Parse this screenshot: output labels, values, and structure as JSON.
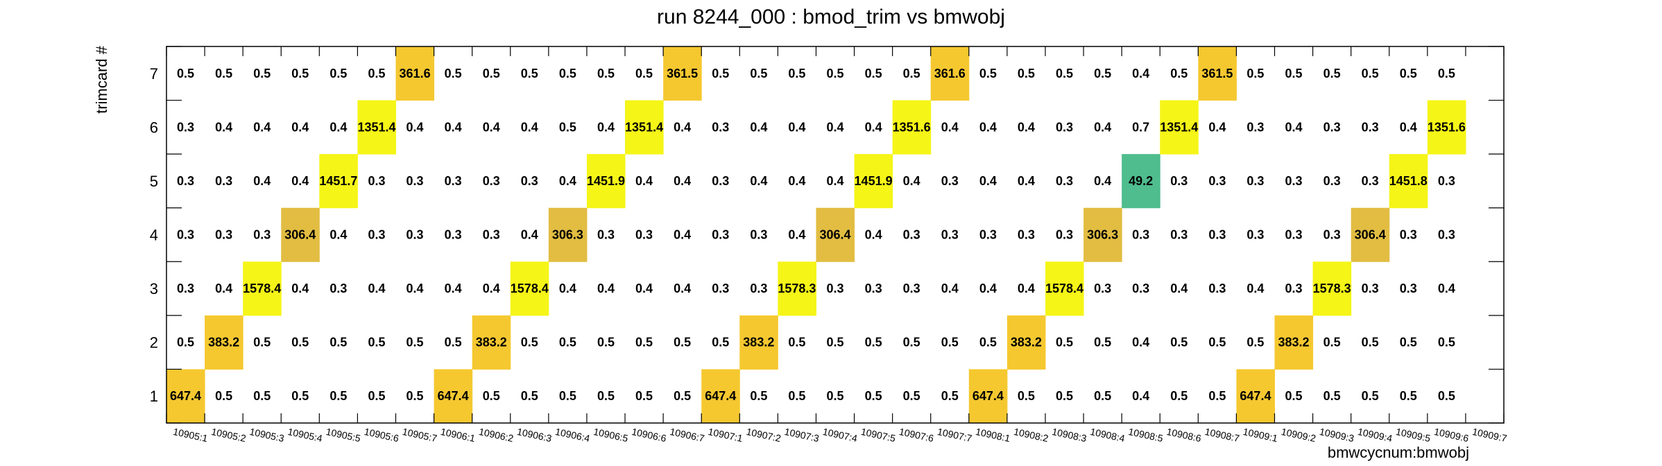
{
  "chart_data": {
    "type": "heatmap",
    "title": "run 8244_000 : bmod_trim vs bmwobj",
    "xlabel": "bmwcycnum:bmwobj",
    "ylabel": "trimcard #",
    "y_categories": [
      "1",
      "2",
      "3",
      "4",
      "5",
      "6",
      "7"
    ],
    "x_categories": [
      "10905:1",
      "10905:2",
      "10905:3",
      "10905:4",
      "10905:5",
      "10905:6",
      "10905:7",
      "10906:1",
      "10906:2",
      "10906:3",
      "10906:4",
      "10906:5",
      "10906:6",
      "10906:7",
      "10907:1",
      "10907:2",
      "10907:3",
      "10907:4",
      "10907:5",
      "10907:6",
      "10907:7",
      "10908:1",
      "10908:2",
      "10908:3",
      "10908:4",
      "10908:5",
      "10908:6",
      "10908:7",
      "10909:1",
      "10909:2",
      "10909:3",
      "10909:4",
      "10909:5",
      "10909:6",
      "10909:7"
    ],
    "values": [
      [
        "647.4",
        "0.5",
        "0.5",
        "0.5",
        "0.5",
        "0.5",
        "0.5",
        "647.4",
        "0.5",
        "0.5",
        "0.5",
        "0.5",
        "0.5",
        "0.5",
        "647.4",
        "0.5",
        "0.5",
        "0.5",
        "0.5",
        "0.5",
        "0.5",
        "647.4",
        "0.5",
        "0.5",
        "0.5",
        "0.4",
        "0.5",
        "0.5",
        "647.4",
        "0.5",
        "0.5",
        "0.5",
        "0.5",
        "0.5",
        ""
      ],
      [
        "0.5",
        "383.2",
        "0.5",
        "0.5",
        "0.5",
        "0.5",
        "0.5",
        "0.5",
        "383.2",
        "0.5",
        "0.5",
        "0.5",
        "0.5",
        "0.5",
        "0.5",
        "383.2",
        "0.5",
        "0.5",
        "0.5",
        "0.5",
        "0.5",
        "0.5",
        "383.2",
        "0.5",
        "0.5",
        "0.4",
        "0.5",
        "0.5",
        "0.5",
        "383.2",
        "0.5",
        "0.5",
        "0.5",
        "0.5",
        ""
      ],
      [
        "0.3",
        "0.4",
        "1578.4",
        "0.4",
        "0.3",
        "0.4",
        "0.4",
        "0.4",
        "0.4",
        "1578.4",
        "0.4",
        "0.4",
        "0.4",
        "0.4",
        "0.3",
        "0.3",
        "1578.3",
        "0.3",
        "0.3",
        "0.3",
        "0.4",
        "0.4",
        "0.4",
        "1578.4",
        "0.3",
        "0.3",
        "0.4",
        "0.3",
        "0.4",
        "0.3",
        "1578.3",
        "0.3",
        "0.3",
        "0.4",
        ""
      ],
      [
        "0.3",
        "0.3",
        "0.3",
        "306.4",
        "0.4",
        "0.3",
        "0.3",
        "0.3",
        "0.3",
        "0.4",
        "306.3",
        "0.3",
        "0.3",
        "0.4",
        "0.3",
        "0.3",
        "0.4",
        "306.4",
        "0.4",
        "0.3",
        "0.3",
        "0.3",
        "0.3",
        "0.3",
        "306.3",
        "0.3",
        "0.3",
        "0.3",
        "0.3",
        "0.3",
        "0.3",
        "306.4",
        "0.3",
        "0.3",
        ""
      ],
      [
        "0.3",
        "0.3",
        "0.4",
        "0.4",
        "1451.7",
        "0.3",
        "0.3",
        "0.3",
        "0.3",
        "0.3",
        "0.4",
        "1451.9",
        "0.4",
        "0.4",
        "0.3",
        "0.4",
        "0.4",
        "0.4",
        "1451.9",
        "0.4",
        "0.3",
        "0.4",
        "0.4",
        "0.3",
        "0.4",
        "49.2",
        "0.3",
        "0.3",
        "0.3",
        "0.3",
        "0.3",
        "0.3",
        "1451.8",
        "0.3",
        ""
      ],
      [
        "0.3",
        "0.4",
        "0.4",
        "0.4",
        "0.4",
        "1351.4",
        "0.4",
        "0.4",
        "0.4",
        "0.4",
        "0.5",
        "0.4",
        "1351.4",
        "0.4",
        "0.3",
        "0.4",
        "0.4",
        "0.4",
        "0.4",
        "1351.6",
        "0.4",
        "0.4",
        "0.4",
        "0.3",
        "0.4",
        "0.7",
        "1351.4",
        "0.4",
        "0.3",
        "0.4",
        "0.3",
        "0.3",
        "0.4",
        "1351.6",
        ""
      ],
      [
        "0.5",
        "0.5",
        "0.5",
        "0.5",
        "0.5",
        "0.5",
        "361.6",
        "0.5",
        "0.5",
        "0.5",
        "0.5",
        "0.5",
        "0.5",
        "361.5",
        "0.5",
        "0.5",
        "0.5",
        "0.5",
        "0.5",
        "0.5",
        "361.6",
        "0.5",
        "0.5",
        "0.5",
        "0.5",
        "0.4",
        "0.5",
        "361.5",
        "0.5",
        "0.5",
        "0.5",
        "0.5",
        "0.5",
        "0.5",
        ""
      ]
    ],
    "colors": {
      "high": "#f5f518",
      "mid_high": "#f5c830",
      "mid": "#e2bd42",
      "low_mid": "#4fbd8e"
    }
  }
}
